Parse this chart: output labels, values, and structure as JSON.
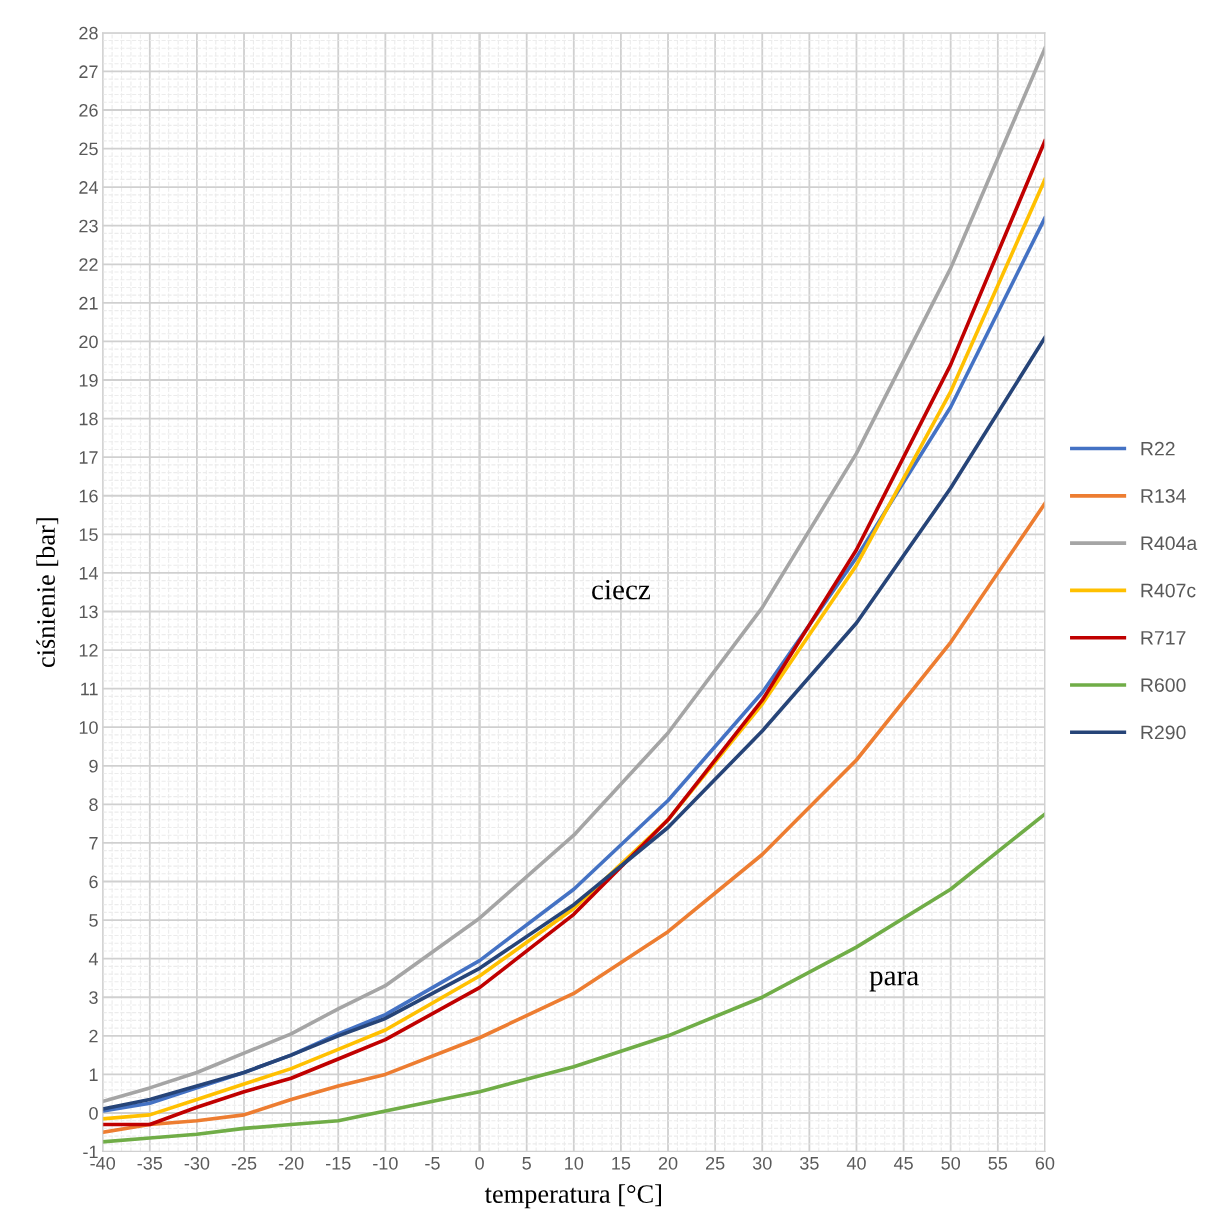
{
  "chart_data": {
    "type": "line",
    "xlabel": "temperatura [°C]",
    "ylabel": "ciśnienie [bar]",
    "x": [
      -40,
      -35,
      -30,
      -25,
      -20,
      -15,
      -10,
      0,
      10,
      20,
      30,
      40,
      50,
      60
    ],
    "series": [
      {
        "name": "R22",
        "color": "#4472c4",
        "values": [
          0.05,
          0.25,
          0.65,
          1.05,
          1.5,
          2.05,
          2.55,
          3.95,
          5.8,
          8.1,
          10.9,
          14.4,
          18.3,
          23.2
        ]
      },
      {
        "name": "R134",
        "color": "#ed7d31",
        "values": [
          -0.5,
          -0.3,
          -0.2,
          -0.05,
          0.35,
          0.7,
          1.0,
          1.95,
          3.1,
          4.7,
          6.7,
          9.15,
          12.2,
          15.8
        ]
      },
      {
        "name": "R404a",
        "color": "#a5a5a5",
        "values": [
          0.3,
          0.65,
          1.05,
          1.55,
          2.05,
          2.7,
          3.3,
          5.05,
          7.2,
          9.85,
          13.1,
          17.1,
          21.9,
          27.6
        ]
      },
      {
        "name": "R407c",
        "color": "#ffc000",
        "values": [
          -0.15,
          -0.05,
          0.35,
          0.75,
          1.15,
          1.65,
          2.15,
          3.55,
          5.3,
          7.6,
          10.6,
          14.2,
          18.7,
          24.2
        ]
      },
      {
        "name": "R717",
        "color": "#c00000",
        "values": [
          -0.3,
          -0.3,
          0.15,
          0.55,
          0.9,
          1.4,
          1.9,
          3.25,
          5.15,
          7.6,
          10.7,
          14.6,
          19.4,
          25.2
        ]
      },
      {
        "name": "R600",
        "color": "#70ad47",
        "values": [
          -0.75,
          -0.65,
          -0.55,
          -0.4,
          -0.3,
          -0.2,
          0.05,
          0.55,
          1.2,
          2.0,
          3.0,
          4.3,
          5.8,
          7.75
        ]
      },
      {
        "name": "R290",
        "color": "#264478",
        "values": [
          0.1,
          0.35,
          0.7,
          1.05,
          1.5,
          2.0,
          2.45,
          3.75,
          5.4,
          7.4,
          9.9,
          12.7,
          16.2,
          20.1
        ]
      }
    ],
    "annotations": [
      "ciecz",
      "para"
    ],
    "xlim": [
      -40,
      60
    ],
    "xticks": [
      -40,
      -35,
      -30,
      -25,
      -20,
      -15,
      -10,
      -5,
      0,
      5,
      10,
      15,
      20,
      25,
      30,
      35,
      40,
      45,
      50,
      55,
      60
    ],
    "ylim": [
      -1,
      28
    ],
    "yticks": [
      -1,
      0,
      1,
      2,
      3,
      4,
      5,
      6,
      7,
      8,
      9,
      10,
      11,
      12,
      13,
      14,
      15,
      16,
      17,
      18,
      19,
      20,
      21,
      22,
      23,
      24,
      25,
      26,
      27,
      28
    ],
    "grid": true,
    "legend": "right",
    "marker": "none",
    "line_style": "solid"
  }
}
